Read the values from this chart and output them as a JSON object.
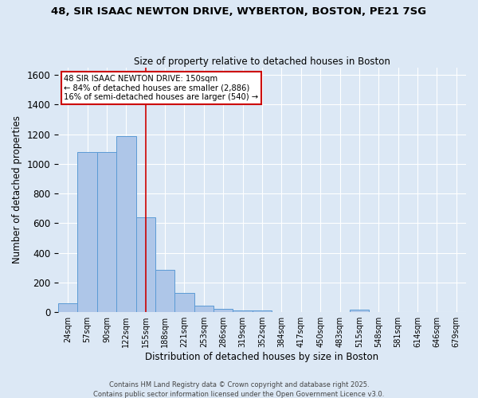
{
  "title_line1": "48, SIR ISAAC NEWTON DRIVE, WYBERTON, BOSTON, PE21 7SG",
  "title_line2": "Size of property relative to detached houses in Boston",
  "xlabel": "Distribution of detached houses by size in Boston",
  "ylabel": "Number of detached properties",
  "bin_labels": [
    "24sqm",
    "57sqm",
    "90sqm",
    "122sqm",
    "155sqm",
    "188sqm",
    "221sqm",
    "253sqm",
    "286sqm",
    "319sqm",
    "352sqm",
    "384sqm",
    "417sqm",
    "450sqm",
    "483sqm",
    "515sqm",
    "548sqm",
    "581sqm",
    "614sqm",
    "646sqm",
    "679sqm"
  ],
  "bar_values": [
    60,
    1080,
    1080,
    1185,
    638,
    285,
    130,
    42,
    20,
    10,
    10,
    0,
    0,
    0,
    0,
    15,
    0,
    0,
    0,
    0,
    0
  ],
  "bar_color": "#aec6e8",
  "bar_edge_color": "#5b9bd5",
  "vline_x_index": 4,
  "vline_color": "#cc0000",
  "annotation_text": "48 SIR ISAAC NEWTON DRIVE: 150sqm\n← 84% of detached houses are smaller (2,886)\n16% of semi-detached houses are larger (540) →",
  "annotation_box_color": "#ffffff",
  "annotation_box_edge": "#cc0000",
  "ylim": [
    0,
    1650
  ],
  "background_color": "#dce8f5",
  "grid_color": "#ffffff",
  "footer_line1": "Contains HM Land Registry data © Crown copyright and database right 2025.",
  "footer_line2": "Contains public sector information licensed under the Open Government Licence v3.0."
}
